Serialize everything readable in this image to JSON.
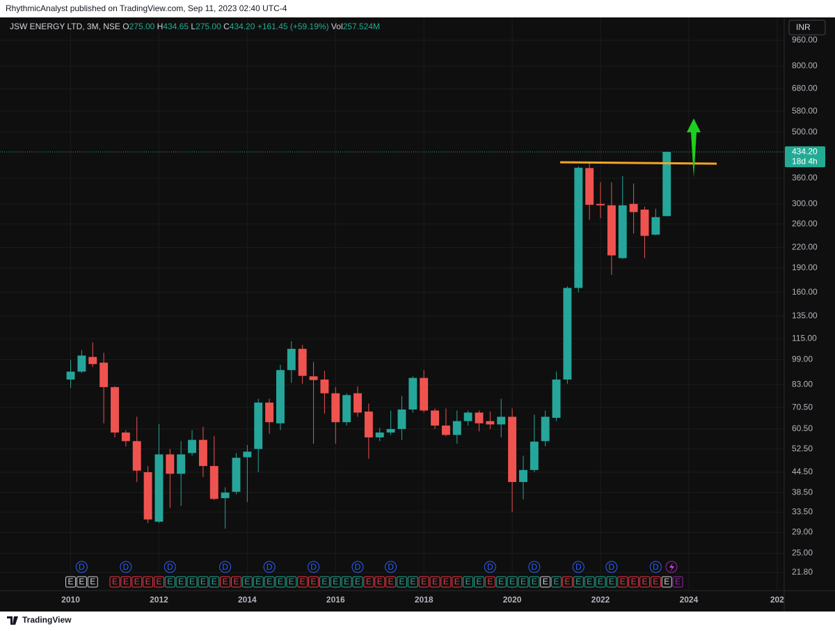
{
  "header": "RhythmicAnalyst published on TradingView.com, Sep 11, 2023 02:40 UTC-4",
  "footer": "TradingView",
  "chart_data": {
    "type": "candlestick",
    "legend": {
      "symbol": "JSW ENERGY LTD, 3M, NSE",
      "o_label": "O",
      "open": "275.00",
      "h_label": "H",
      "high": "434.65",
      "l_label": "L",
      "low": "275.00",
      "c_label": "C",
      "close": "434.20",
      "change": "+161.45 (+59.19%)",
      "vol_label": "Vol",
      "volume": "257.524M"
    },
    "currency": "INR",
    "up_color": "#26a69a",
    "down_color": "#ef5350",
    "log_scale": true,
    "grid": true,
    "x": [
      2010,
      2010.25,
      2010.5,
      2010.75,
      2011,
      2011.25,
      2011.5,
      2011.75,
      2012,
      2012.25,
      2012.5,
      2012.75,
      2013,
      2013.25,
      2013.5,
      2013.75,
      2014,
      2014.25,
      2014.5,
      2014.75,
      2015,
      2015.25,
      2015.5,
      2015.75,
      2016,
      2016.25,
      2016.5,
      2016.75,
      2017,
      2017.25,
      2017.5,
      2017.75,
      2018,
      2018.25,
      2018.5,
      2018.75,
      2019,
      2019.25,
      2019.5,
      2019.75,
      2020,
      2020.25,
      2020.5,
      2020.75,
      2021,
      2021.25,
      2021.5,
      2021.75,
      2022,
      2022.25,
      2022.5,
      2022.75,
      2023,
      2023.25,
      2023.5
    ],
    "open": [
      86,
      91,
      101,
      97,
      81.5,
      59,
      55.5,
      44.5,
      31.3,
      50.5,
      44,
      51,
      56,
      46.5,
      37,
      38.7,
      49.5,
      52.5,
      73,
      63,
      92,
      107,
      88,
      86,
      78,
      63.5,
      78,
      68.5,
      57,
      59,
      60.5,
      69.5,
      87,
      69,
      62,
      58,
      64,
      68,
      64,
      62.5,
      66,
      41.5,
      45.2,
      55.5,
      65.5,
      86,
      165,
      387,
      300,
      297,
      204,
      300,
      288,
      241,
      275
    ],
    "high": [
      99,
      106,
      112,
      104,
      82,
      60,
      66,
      46.5,
      62.7,
      52.5,
      55.5,
      60,
      61.5,
      57.5,
      40,
      51,
      54,
      75,
      75,
      95.5,
      113,
      110,
      97.5,
      91.5,
      81.5,
      78,
      82,
      72.5,
      61,
      69,
      76.5,
      88,
      92,
      70,
      70,
      69,
      69,
      69,
      68.5,
      75,
      70,
      50,
      67,
      69,
      91,
      167,
      392,
      400,
      350,
      350,
      366,
      347,
      294,
      290,
      434.65
    ],
    "low": [
      81,
      90,
      94,
      63,
      57,
      53.5,
      41.5,
      31,
      31,
      34.5,
      35,
      50,
      43,
      36.5,
      29.8,
      38,
      36,
      44.5,
      58.5,
      60,
      84,
      83.5,
      54.5,
      67.5,
      54.5,
      62,
      66,
      49,
      55.5,
      58,
      56,
      68,
      68,
      60.5,
      57.5,
      54.5,
      62,
      59.5,
      60.5,
      57,
      33.5,
      36.7,
      44.5,
      53.5,
      64,
      83.5,
      160,
      268,
      271,
      181,
      203,
      243,
      204,
      240,
      275
    ],
    "close": [
      91,
      102,
      96,
      81.5,
      59,
      55.5,
      45,
      31.8,
      50.5,
      44,
      50.5,
      56,
      46.5,
      36.8,
      38.5,
      49.3,
      51.5,
      73,
      63.5,
      92,
      107,
      88.3,
      85.7,
      78,
      63.5,
      77,
      68,
      57,
      59,
      60.5,
      69.5,
      87,
      69,
      62,
      58,
      64,
      68,
      63,
      62.5,
      66,
      41.5,
      45.2,
      55.3,
      66,
      86,
      165,
      388,
      298,
      297,
      208,
      297,
      283,
      239,
      273,
      434.2
    ],
    "xlim": [
      2008.4,
      2026.16
    ],
    "xticks": [
      2010,
      2012,
      2014,
      2016,
      2018,
      2020,
      2022,
      2024,
      {
        "value": 2026,
        "label": "202"
      }
    ],
    "ylim": [
      19.17,
      1130
    ],
    "yticks": [
      {
        "value": 960,
        "label": "960.00"
      },
      {
        "value": 800,
        "label": "800.00"
      },
      {
        "value": 680,
        "label": "680.00"
      },
      {
        "value": 580,
        "label": "580.00"
      },
      {
        "value": 500,
        "label": "500.00"
      },
      {
        "value": 360,
        "label": "360.00"
      },
      {
        "value": 300,
        "label": "300.00"
      },
      {
        "value": 260,
        "label": "260.00"
      },
      {
        "value": 220,
        "label": "220.00"
      },
      {
        "value": 190,
        "label": "190.00"
      },
      {
        "value": 160,
        "label": "160.00"
      },
      {
        "value": 135,
        "label": "135.00"
      },
      {
        "value": 115,
        "label": "115.00"
      },
      {
        "value": 99,
        "label": "99.00"
      },
      {
        "value": 83,
        "label": "83.00"
      },
      {
        "value": 70.5,
        "label": "70.50"
      },
      {
        "value": 60.5,
        "label": "60.50"
      },
      {
        "value": 52.5,
        "label": "52.50"
      },
      {
        "value": 44.5,
        "label": "44.50"
      },
      {
        "value": 38.5,
        "label": "38.50"
      },
      {
        "value": 33.5,
        "label": "33.50"
      },
      {
        "value": 29,
        "label": "29.00"
      },
      {
        "value": 25,
        "label": "25.00"
      },
      {
        "value": 21.8,
        "label": "21.80"
      }
    ],
    "last_price": {
      "value": 434.2,
      "label": "434.20",
      "countdown": "18d 4h",
      "color": "#22ab94"
    },
    "dividends": {
      "label": "D",
      "color": "#2962ff",
      "x": [
        2010.25,
        2011.25,
        2012.25,
        2013.5,
        2014.5,
        2015.5,
        2016.5,
        2017.25,
        2019.5,
        2020.5,
        2021.5,
        2022.25,
        2023.25
      ]
    },
    "earnings": {
      "label": "E",
      "x": [
        2010,
        2010.25,
        2010.5,
        2011,
        2011.25,
        2011.5,
        2011.75,
        2012,
        2012.25,
        2012.5,
        2012.75,
        2013,
        2013.25,
        2013.5,
        2013.75,
        2014,
        2014.25,
        2014.5,
        2014.75,
        2015,
        2015.25,
        2015.5,
        2015.75,
        2016,
        2016.25,
        2016.5,
        2016.75,
        2017,
        2017.25,
        2017.5,
        2017.75,
        2018,
        2018.25,
        2018.5,
        2018.75,
        2019,
        2019.25,
        2019.5,
        2019.75,
        2020,
        2020.25,
        2020.5,
        2020.75,
        2021,
        2021.25,
        2021.5,
        2021.75,
        2022,
        2022.25,
        2022.5,
        2022.75,
        2023,
        2023.25,
        2023.5,
        2023.75
      ],
      "colors": [
        "#d1d4dc",
        "#d1d4dc",
        "#d1d4dc",
        "#f23645",
        "#f23645",
        "#f23645",
        "#f23645",
        "#f23645",
        "#22ab94",
        "#22ab94",
        "#22ab94",
        "#22ab94",
        "#22ab94",
        "#f23645",
        "#f23645",
        "#22ab94",
        "#22ab94",
        "#22ab94",
        "#22ab94",
        "#22ab94",
        "#f23645",
        "#f23645",
        "#22ab94",
        "#22ab94",
        "#22ab94",
        "#22ab94",
        "#f23645",
        "#f23645",
        "#f23645",
        "#22ab94",
        "#22ab94",
        "#f23645",
        "#f23645",
        "#f23645",
        "#f23645",
        "#22ab94",
        "#22ab94",
        "#f23645",
        "#22ab94",
        "#22ab94",
        "#22ab94",
        "#22ab94",
        "#d1d4dc",
        "#22ab94",
        "#f23645",
        "#22ab94",
        "#22ab94",
        "#22ab94",
        "#22ab94",
        "#f23645",
        "#f23645",
        "#f23645",
        "#f23645",
        "#d1d4dc",
        "#9c27b0"
      ]
    }
  }
}
